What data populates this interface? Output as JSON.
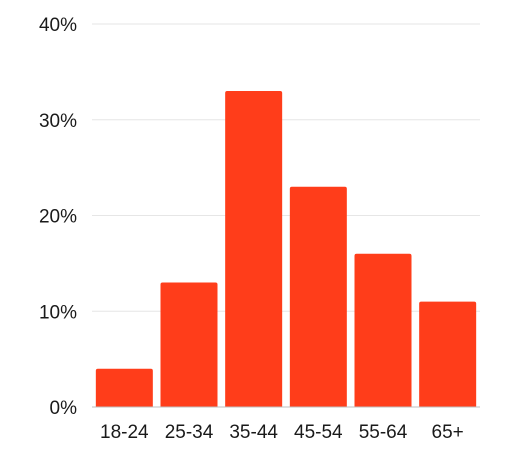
{
  "chart_data": {
    "type": "bar",
    "title": "",
    "xlabel": "",
    "ylabel": "",
    "categories": [
      "18-24",
      "25-34",
      "35-44",
      "45-54",
      "55-64",
      "65+"
    ],
    "values": [
      4,
      13,
      33,
      23,
      16,
      11
    ],
    "value_unit": "%",
    "ylim": [
      0,
      40
    ],
    "yticks": [
      0,
      10,
      20,
      30,
      40
    ],
    "ytick_labels": [
      "0%",
      "10%",
      "20%",
      "30%",
      "40%"
    ],
    "grid": true,
    "legend": "none",
    "bar_color": "#FF3D1A",
    "grid_color": "#E6E6E6",
    "axis_color": "#BFBFBF"
  }
}
